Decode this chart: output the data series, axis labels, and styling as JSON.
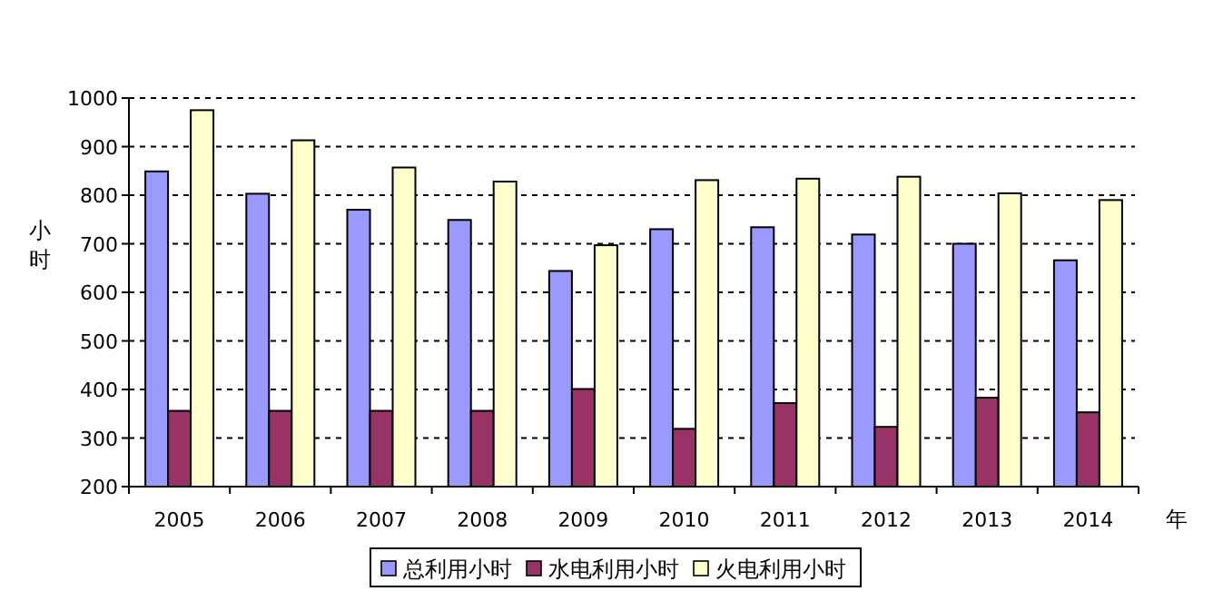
{
  "chart_data": {
    "type": "bar",
    "ylabel": "小时",
    "xlabel": "年",
    "categories": [
      "2005",
      "2006",
      "2007",
      "2008",
      "2009",
      "2010",
      "2011",
      "2012",
      "2013",
      "2014"
    ],
    "series": [
      {
        "name": "总利用小时",
        "color": "#9999ff",
        "values": [
          849,
          803,
          770,
          749,
          644,
          730,
          734,
          719,
          700,
          666
        ]
      },
      {
        "name": "水电利用小时",
        "color": "#993366",
        "values": [
          356,
          356,
          356,
          356,
          401,
          319,
          372,
          323,
          383,
          353
        ]
      },
      {
        "name": "火电利用小时",
        "color": "#ffffcc",
        "values": [
          975,
          913,
          857,
          828,
          697,
          831,
          834,
          838,
          804,
          790
        ]
      }
    ],
    "ylim": [
      200,
      1000
    ],
    "yticks": [
      200,
      300,
      400,
      500,
      600,
      700,
      800,
      900,
      1000
    ],
    "grid": "y",
    "legend": "bottom"
  }
}
